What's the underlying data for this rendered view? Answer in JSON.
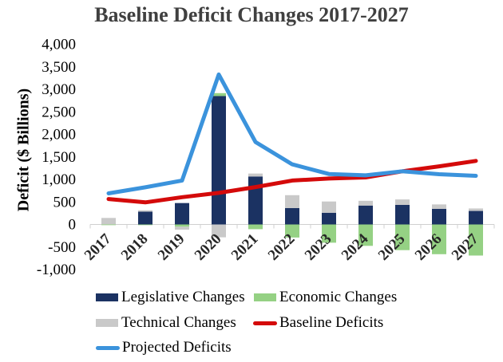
{
  "chart_data": {
    "type": "bar",
    "title": "Baseline Deficit Changes 2017-2027",
    "xlabel": "",
    "ylabel": "Deficit ($ Billions)",
    "ylim": [
      -1000,
      4000
    ],
    "yticks": [
      4000,
      3500,
      3000,
      2500,
      2000,
      1500,
      1000,
      500,
      0,
      -500,
      -1000
    ],
    "ytick_labels": [
      "4,000",
      "3,500",
      "3,000",
      "2,500",
      "2,000",
      "1,500",
      "1,000",
      "500",
      "0",
      "-500",
      "-1,000"
    ],
    "grid": false,
    "legend_position": "bottom",
    "categories": [
      "2017",
      "2018",
      "2019",
      "2020",
      "2021",
      "2022",
      "2023",
      "2024",
      "2025",
      "2026",
      "2027"
    ],
    "stacked_bars": [
      {
        "name": "Legislative Changes",
        "color": "#1b3262",
        "values": [
          0,
          285,
          475,
          2850,
          1065,
          365,
          260,
          420,
          435,
          345,
          300
        ]
      },
      {
        "name": "Economic Changes",
        "color": "#95d184",
        "values": [
          -15,
          -15,
          -50,
          65,
          -105,
          -290,
          -405,
          -475,
          -570,
          -660,
          -690
        ]
      },
      {
        "name": "Technical Changes",
        "color": "#c9c9c9",
        "values": [
          145,
          30,
          -65,
          -285,
          65,
          285,
          250,
          105,
          120,
          100,
          55
        ]
      }
    ],
    "line_series": [
      {
        "name": "Baseline Deficits",
        "color": "#d40a0a",
        "values": [
          565,
          490,
          605,
          700,
          830,
          975,
          1020,
          1045,
          1180,
          1290,
          1410
        ]
      },
      {
        "name": "Projected Deficits",
        "color": "#3b93dc",
        "values": [
          690,
          825,
          975,
          3330,
          1830,
          1335,
          1120,
          1090,
          1180,
          1115,
          1080
        ]
      }
    ],
    "legend": [
      "Legislative Changes",
      "Economic Changes",
      "Technical Changes",
      "Baseline Deficits",
      "Projected Deficits"
    ]
  }
}
